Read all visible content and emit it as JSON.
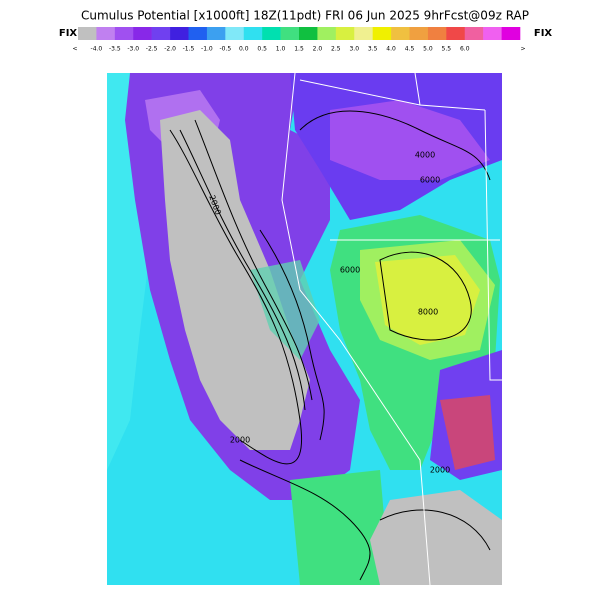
{
  "header": {
    "title": "Cumulus Potential [x1000ft] 18Z(11pdt) FRI 06 Jun 2025 9hrFcst@09z RAP",
    "left_label": "FIX",
    "right_label": "FIX"
  },
  "colorbar": {
    "labels": [
      "<",
      "-4.0",
      "-3.5",
      "-3.0",
      "-2.5",
      "-2.0",
      "-1.5",
      "-1.0",
      "-0.5",
      "0.0",
      "0.5",
      "1.0",
      "1.5",
      "2.0",
      "2.5",
      "3.0",
      "3.5",
      "4.0",
      "4.5",
      "5.0",
      "5.5",
      "6.0",
      ">"
    ],
    "colors": [
      "#c0c0c0",
      "#c080f0",
      "#a050f0",
      "#8828e8",
      "#7040f0",
      "#4020e0",
      "#2060f0",
      "#3ca0f0",
      "#80e8f8",
      "#30e0f0",
      "#00e0b0",
      "#40e080",
      "#10c040",
      "#a0f060",
      "#d8f040",
      "#f0f090",
      "#f0f000",
      "#f0c040",
      "#f0a040",
      "#f08040",
      "#f04848",
      "#f060a0",
      "#f060f0",
      "#e000e0"
    ]
  },
  "map": {
    "contour_labels": [
      "2000",
      "2000",
      "6000",
      "6000",
      "8000",
      "4000",
      "2000"
    ]
  }
}
